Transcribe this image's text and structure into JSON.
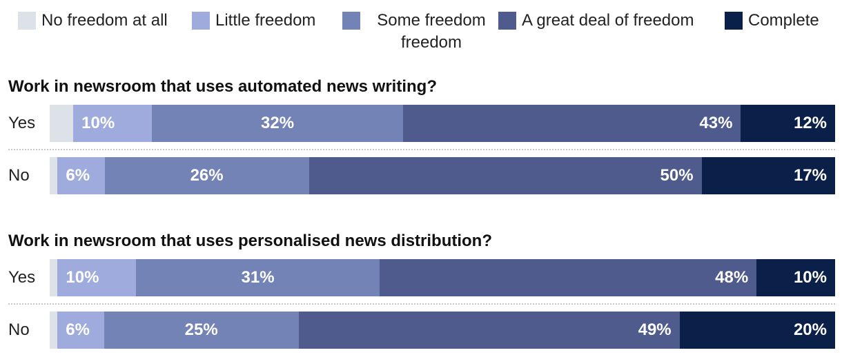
{
  "legend": [
    {
      "label": "No freedom at all",
      "color": "#dde1e8"
    },
    {
      "label": "Little freedom",
      "color": "#9fabdc"
    },
    {
      "label": "Some freedom",
      "label_line2": "freedom",
      "color": "#7483b5"
    },
    {
      "label": "A great deal of freedom",
      "color": "#4e5b8c"
    },
    {
      "label": "Complete",
      "color": "#0b2048"
    }
  ],
  "chart_data": {
    "type": "bar",
    "orientation": "horizontal",
    "stacked": true,
    "normalized_percent": true,
    "categories": [
      "No freedom at all",
      "Little freedom",
      "Some freedom",
      "A great deal of freedom",
      "Complete"
    ],
    "groups": [
      {
        "title": "Work in newsroom that uses automated news writing?",
        "rows": [
          {
            "label": "Yes",
            "values": [
              3,
              10,
              32,
              43,
              12
            ],
            "labels": [
              "",
              "10%",
              "32%",
              "43%",
              "12%"
            ]
          },
          {
            "label": "No",
            "values": [
              1,
              6,
              26,
              50,
              17
            ],
            "labels": [
              "",
              "6%",
              "26%",
              "50%",
              "17%"
            ]
          }
        ]
      },
      {
        "title": "Work in newsroom that uses personalised news distribution?",
        "rows": [
          {
            "label": "Yes",
            "values": [
              1,
              10,
              31,
              48,
              10
            ],
            "labels": [
              "",
              "10%",
              "31%",
              "48%",
              "10%"
            ]
          },
          {
            "label": "No",
            "values": [
              1,
              6,
              25,
              49,
              20
            ],
            "labels": [
              "",
              "6%",
              "25%",
              "49%",
              "20%"
            ]
          }
        ]
      }
    ],
    "legend_position": "top",
    "grid": false
  }
}
